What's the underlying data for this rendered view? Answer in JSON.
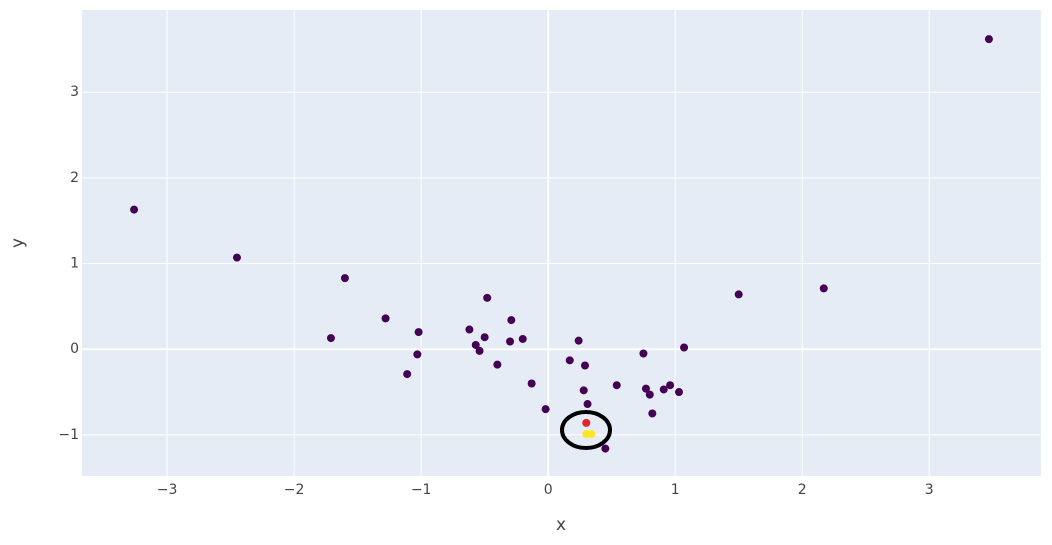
{
  "chart_data": {
    "type": "scatter",
    "x_label": "x",
    "y_label": "y",
    "xlim": [
      -3.67,
      3.88
    ],
    "ylim": [
      -1.48,
      3.96
    ],
    "xticks": [
      {
        "value": -3,
        "label": "−3"
      },
      {
        "value": -2,
        "label": "−2"
      },
      {
        "value": -1,
        "label": "−1"
      },
      0,
      1,
      2,
      3
    ],
    "yticks": [
      {
        "value": -1,
        "label": "−1"
      },
      0,
      1,
      2,
      3
    ],
    "grid": true,
    "series": [
      {
        "color": "#440154",
        "x": [
          -3.26,
          -2.45,
          -1.6,
          -1.71,
          -1.28,
          -1.02,
          -1.03,
          -1.11,
          -0.62,
          -0.57,
          -0.54,
          -0.5,
          -0.48,
          -0.4,
          -0.29,
          -0.3,
          -0.2,
          -0.13,
          -0.02,
          0.17,
          0.24,
          0.29,
          0.28,
          0.31,
          0.54,
          0.75,
          0.77,
          0.8,
          0.82,
          0.91,
          0.96,
          1.03,
          1.07,
          0.45,
          1.5,
          2.17,
          3.47
        ],
        "values": [
          1.63,
          1.07,
          0.83,
          0.13,
          0.36,
          0.2,
          -0.06,
          -0.29,
          0.23,
          0.05,
          -0.02,
          0.14,
          0.6,
          -0.18,
          0.34,
          0.09,
          0.12,
          -0.4,
          -0.7,
          -0.13,
          0.1,
          -0.19,
          -0.48,
          -0.64,
          -0.42,
          -0.05,
          -0.46,
          -0.53,
          -0.75,
          -0.47,
          -0.42,
          -0.5,
          0.02,
          -1.16,
          0.64,
          0.71,
          3.62
        ]
      },
      {
        "color": "#fde725",
        "x": [
          0.3,
          0.34
        ],
        "values": [
          -0.99,
          -0.99
        ]
      },
      {
        "color": "#e3262b",
        "x": [
          0.3
        ],
        "values": [
          -0.86
        ]
      }
    ]
  }
}
